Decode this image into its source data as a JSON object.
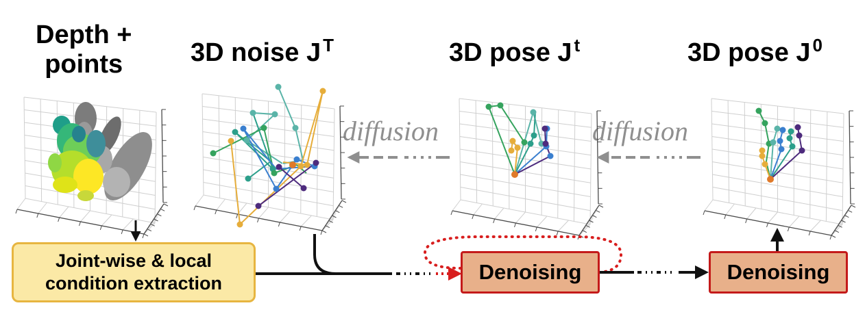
{
  "titles": {
    "depth_points_line1": "Depth +",
    "depth_points_line2": "points",
    "noise": "3D noise J",
    "noise_sup": "T",
    "pose_t": "3D pose J",
    "pose_t_sup": "t",
    "pose_0": "3D pose J",
    "pose_0_sup": "0"
  },
  "arrows": {
    "diffusion_1": "diffusion",
    "diffusion_2": "diffusion"
  },
  "boxes": {
    "condition_line1": "Joint-wise & local",
    "condition_line2": "condition extraction",
    "denoise_1": "Denoising",
    "denoise_2": "Denoising"
  },
  "colors": {
    "diffusion_arrow": "#8f8f8f",
    "condition_fill": "#fbe9a6",
    "condition_border": "#e7b540",
    "denoise_fill": "#e8b08a",
    "denoise_border": "#c41a1a",
    "loop_dots": "#d81e1e"
  }
}
